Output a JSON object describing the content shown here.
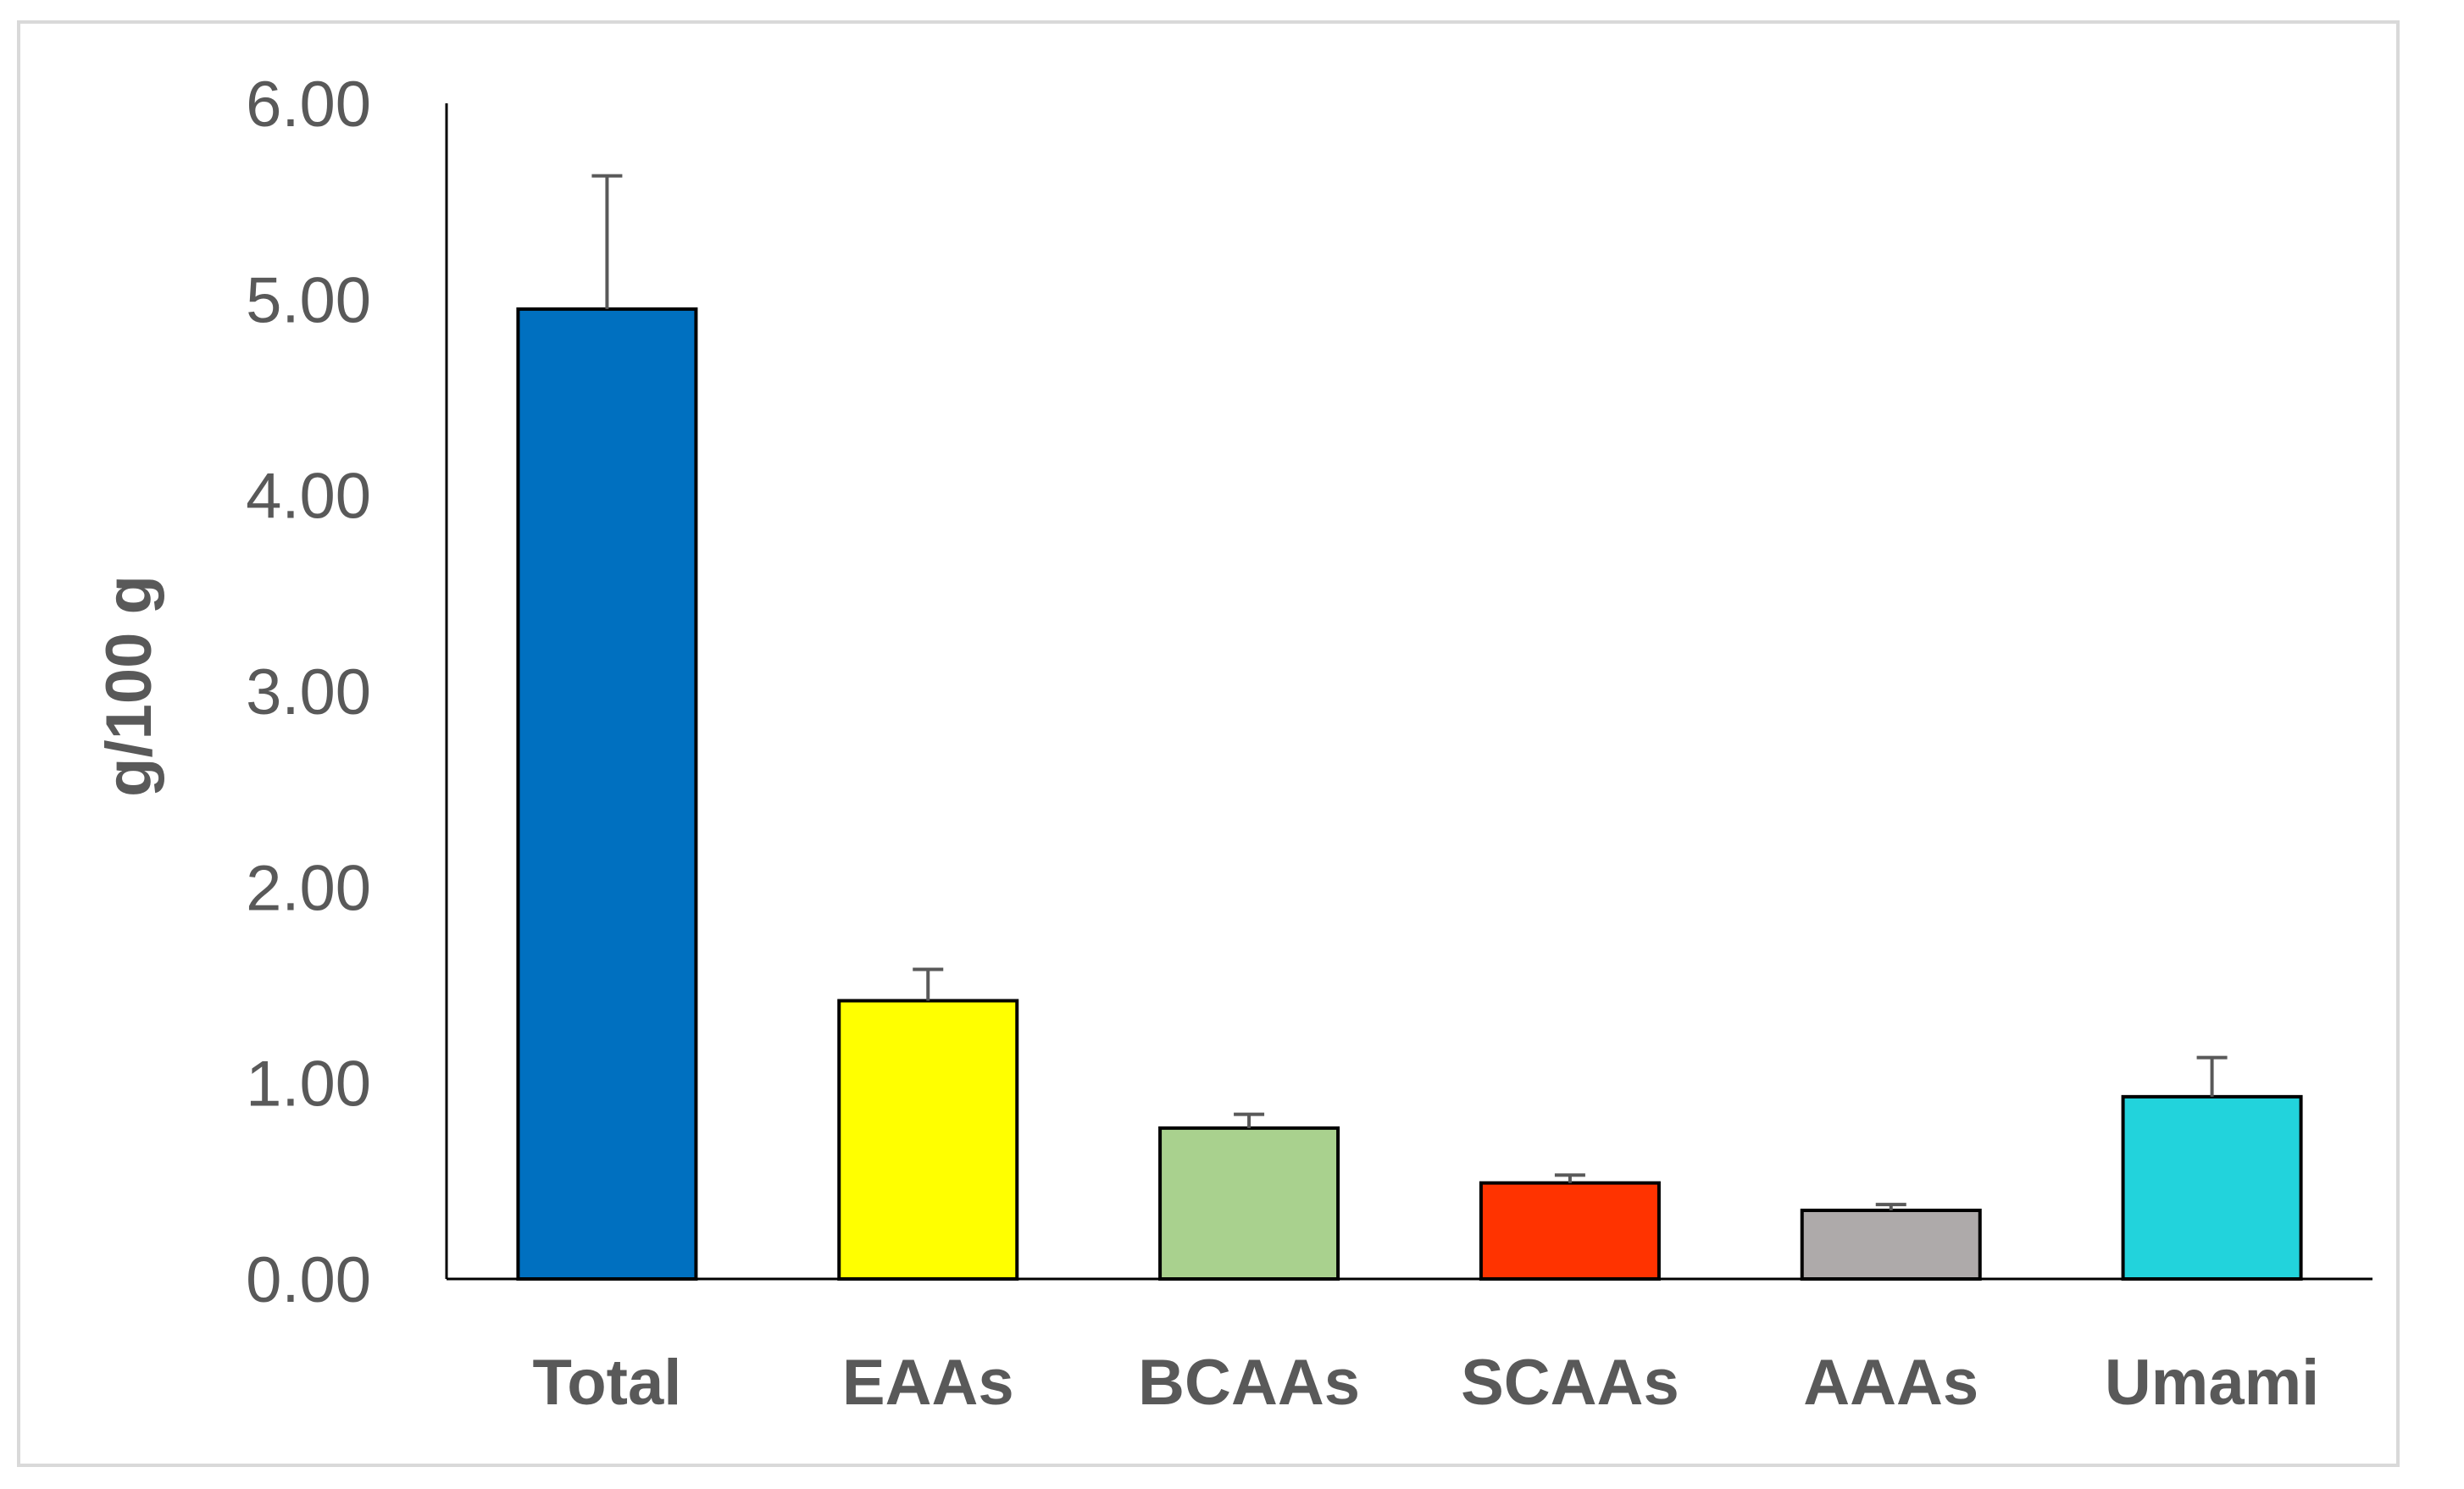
{
  "chart_data": {
    "type": "bar",
    "title": "",
    "xlabel": "",
    "ylabel": "g/100 g",
    "categories": [
      "Total",
      "EAAs",
      "BCAAs",
      "SCAAs",
      "AAAs",
      "Umami"
    ],
    "values": [
      4.95,
      1.42,
      0.77,
      0.49,
      0.35,
      0.93
    ],
    "errors": [
      0.68,
      0.16,
      0.07,
      0.04,
      0.03,
      0.2
    ],
    "colors": [
      "#0070C0",
      "#FFFF00",
      "#A9D18E",
      "#FF3300",
      "#AEAAAA",
      "#22D3DC"
    ],
    "ylim": [
      0,
      6
    ],
    "yticks": [
      "0.00",
      "1.00",
      "2.00",
      "3.00",
      "4.00",
      "5.00",
      "6.00"
    ],
    "grid": false,
    "legend": "none"
  }
}
